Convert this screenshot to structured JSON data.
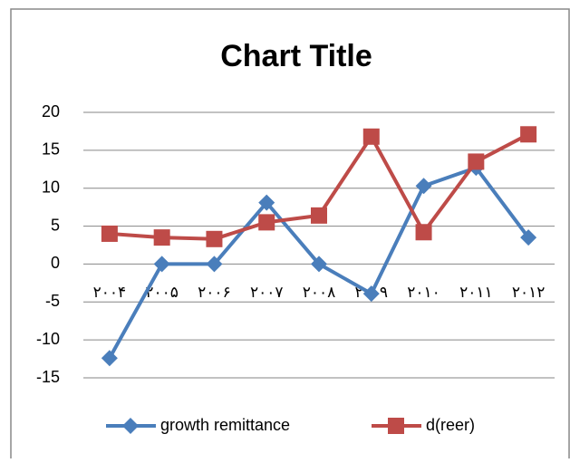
{
  "chart_data": {
    "type": "line",
    "title": "Chart Title",
    "categories": [
      "۲۰۰۴",
      "۲۰۰۵",
      "۲۰۰۶",
      "۲۰۰۷",
      "۲۰۰۸",
      "۲۰۰۹",
      "۲۰۱۰",
      "۲۰۱۱",
      "۲۰۱۲"
    ],
    "series": [
      {
        "name": "growth remittance",
        "color": "#4a7ebb",
        "marker": "diamond",
        "values": [
          -12.4,
          0,
          0,
          8.1,
          0,
          -3.9,
          10.3,
          12.7,
          3.5
        ]
      },
      {
        "name": "d(reer)",
        "color": "#be4b48",
        "marker": "square",
        "values": [
          4.0,
          3.5,
          3.3,
          5.5,
          6.4,
          16.8,
          4.2,
          13.5,
          17.1
        ]
      }
    ],
    "ylim": [
      -15,
      20
    ],
    "yticks": [
      -15,
      -10,
      -5,
      0,
      5,
      10,
      15,
      20
    ],
    "grid": true,
    "legend": "bottom"
  }
}
